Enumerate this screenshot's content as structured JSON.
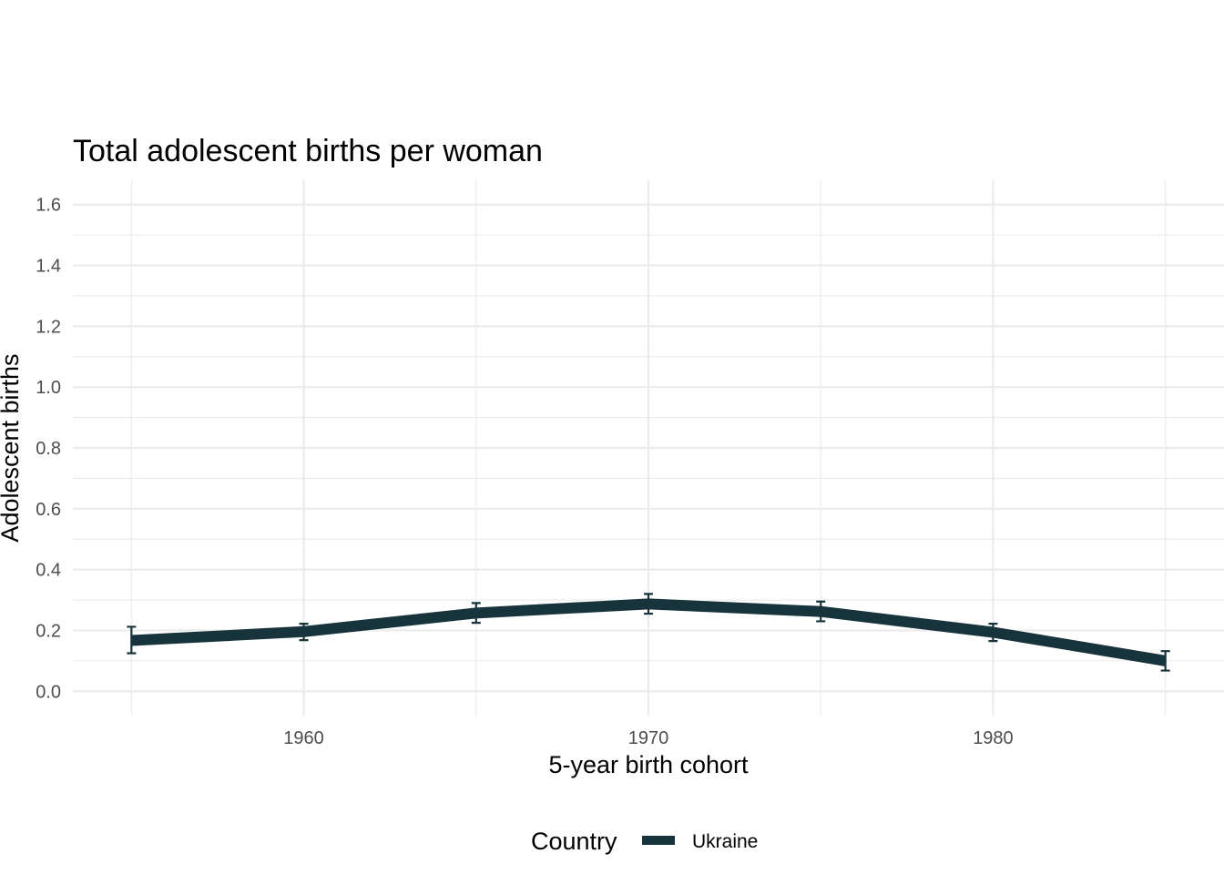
{
  "chart_data": {
    "type": "line",
    "title": "Total adolescent births per woman",
    "xlabel": "5-year birth cohort",
    "ylabel": "Adolescent births",
    "xlim": [
      1953.3,
      1986.7
    ],
    "ylim": [
      -0.08,
      1.68
    ],
    "x_ticks": [
      1960,
      1970,
      1980
    ],
    "x_tick_labels": [
      "1960",
      "1970",
      "1980"
    ],
    "x_minor_ticks": [
      1955,
      1965,
      1975,
      1985
    ],
    "y_ticks": [
      0.0,
      0.2,
      0.4,
      0.6,
      0.8,
      1.0,
      1.2,
      1.4,
      1.6
    ],
    "y_tick_labels": [
      "0.0",
      "0.2",
      "0.4",
      "0.6",
      "0.8",
      "1.0",
      "1.2",
      "1.4",
      "1.6"
    ],
    "y_minor_ticks": [
      0.1,
      0.3,
      0.5,
      0.7,
      0.9,
      1.1,
      1.3,
      1.5
    ],
    "grid": true,
    "legend": {
      "title": "Country",
      "position": "bottom"
    },
    "series": [
      {
        "name": "Ukraine",
        "color": "#17343d",
        "points": [
          {
            "x": 1955,
            "y": 0.167,
            "lo": 0.125,
            "hi": 0.212
          },
          {
            "x": 1960,
            "y": 0.196,
            "lo": 0.168,
            "hi": 0.222
          },
          {
            "x": 1965,
            "y": 0.257,
            "lo": 0.225,
            "hi": 0.29
          },
          {
            "x": 1970,
            "y": 0.287,
            "lo": 0.255,
            "hi": 0.32
          },
          {
            "x": 1975,
            "y": 0.262,
            "lo": 0.23,
            "hi": 0.295
          },
          {
            "x": 1980,
            "y": 0.194,
            "lo": 0.165,
            "hi": 0.222
          },
          {
            "x": 1985,
            "y": 0.1,
            "lo": 0.068,
            "hi": 0.132
          }
        ]
      }
    ]
  }
}
